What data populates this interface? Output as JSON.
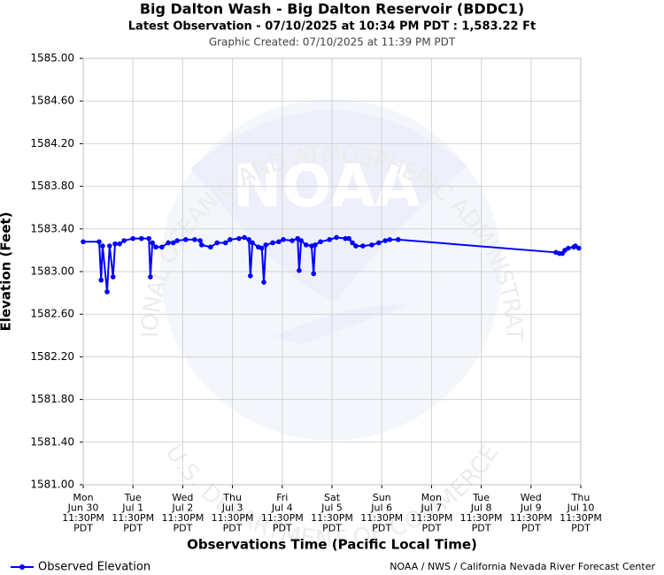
{
  "chart_data": {
    "type": "line",
    "title": "Big Dalton Wash - Big Dalton Reservoir (BDDC1)",
    "subtitle": "Latest Observation - 07/10/2025 at 10:34 PM PDT : 1,583.22 Ft",
    "created": "Graphic Created: 07/10/2025 at 11:39 PM PDT",
    "xlabel": "Observations Time (Pacific Local Time)",
    "ylabel": "Elevation (Feet)",
    "credit": "NOAA / NWS / California Nevada River Forecast Center",
    "watermark": {
      "logo": "NOAA",
      "top": "NATIONAL OCEANIC AND ATMOSPHERIC ADMINISTRATION",
      "bottom": "U.S. DEPARTMENT OF COMMERCE"
    },
    "grid": true,
    "legend": "lower left",
    "xlim": [
      0,
      10
    ],
    "xticks": [
      {
        "value": 0,
        "label": "Mon\nJun 30\n11:30PM\nPDT"
      },
      {
        "value": 1,
        "label": "Tue\nJul 1\n11:30PM\nPDT"
      },
      {
        "value": 2,
        "label": "Wed\nJul 2\n11:30PM\nPDT"
      },
      {
        "value": 3,
        "label": "Thu\nJul 3\n11:30PM\nPDT"
      },
      {
        "value": 4,
        "label": "Fri\nJul 4\n11:30PM\nPDT"
      },
      {
        "value": 5,
        "label": "Sat\nJul 5\n11:30PM\nPDT"
      },
      {
        "value": 6,
        "label": "Sun\nJul 6\n11:30PM\nPDT"
      },
      {
        "value": 7,
        "label": "Mon\nJul 7\n11:30PM\nPDT"
      },
      {
        "value": 8,
        "label": "Tue\nJul 8\n11:30PM\nPDT"
      },
      {
        "value": 9,
        "label": "Wed\nJul 9\n11:30PM\nPDT"
      },
      {
        "value": 10,
        "label": "Thu\nJul 10\n11:30PM\nPDT"
      }
    ],
    "ylim": [
      1581,
      1585
    ],
    "yticks": [
      {
        "value": 1581,
        "label": "1581.00"
      },
      {
        "value": 1581.4,
        "label": "1581.40"
      },
      {
        "value": 1581.8,
        "label": "1581.80"
      },
      {
        "value": 1582.2,
        "label": "1582.20"
      },
      {
        "value": 1582.6,
        "label": "1582.60"
      },
      {
        "value": 1583,
        "label": "1583.00"
      },
      {
        "value": 1583.4,
        "label": "1583.40"
      },
      {
        "value": 1583.8,
        "label": "1583.80"
      },
      {
        "value": 1584.2,
        "label": "1584.20"
      },
      {
        "value": 1584.6,
        "label": "1584.60"
      },
      {
        "value": 1585,
        "label": "1585.00"
      }
    ],
    "x": [
      0,
      0.32,
      0.36,
      0.39,
      0.48,
      0.53,
      0.6,
      0.64,
      0.73,
      0.82,
      1.0,
      1.17,
      1.32,
      1.35,
      1.39,
      1.46,
      1.58,
      1.71,
      1.81,
      1.89,
      2.06,
      2.24,
      2.35,
      2.38,
      2.56,
      2.69,
      2.86,
      2.95,
      3.13,
      3.24,
      3.33,
      3.36,
      3.4,
      3.52,
      3.59,
      3.63,
      3.67,
      3.81,
      3.93,
      4.02,
      4.2,
      4.31,
      4.34,
      4.38,
      4.48,
      4.59,
      4.63,
      4.66,
      4.77,
      4.95,
      5.09,
      5.27,
      5.34,
      5.41,
      5.48,
      5.62,
      5.8,
      5.94,
      6.07,
      6.16,
      6.33,
      9.5,
      9.57,
      9.63,
      9.68,
      9.75,
      9.86,
      9.89,
      9.96
    ],
    "series": [
      {
        "name": "Observed Elevation",
        "color": "#0000ff",
        "values": [
          1583.28,
          1583.28,
          1582.92,
          1583.24,
          1582.81,
          1583.24,
          1582.95,
          1583.26,
          1583.26,
          1583.29,
          1583.31,
          1583.31,
          1583.31,
          1582.95,
          1583.27,
          1583.23,
          1583.23,
          1583.27,
          1583.27,
          1583.29,
          1583.3,
          1583.3,
          1583.29,
          1583.25,
          1583.23,
          1583.27,
          1583.27,
          1583.3,
          1583.31,
          1583.32,
          1583.3,
          1582.96,
          1583.27,
          1583.23,
          1583.22,
          1582.9,
          1583.25,
          1583.27,
          1583.28,
          1583.3,
          1583.29,
          1583.31,
          1583.01,
          1583.29,
          1583.25,
          1583.24,
          1582.98,
          1583.25,
          1583.28,
          1583.3,
          1583.32,
          1583.31,
          1583.31,
          1583.27,
          1583.24,
          1583.24,
          1583.25,
          1583.27,
          1583.29,
          1583.3,
          1583.3,
          1583.18,
          1583.17,
          1583.17,
          1583.2,
          1583.22,
          1583.23,
          1583.24,
          1583.22
        ]
      }
    ]
  }
}
